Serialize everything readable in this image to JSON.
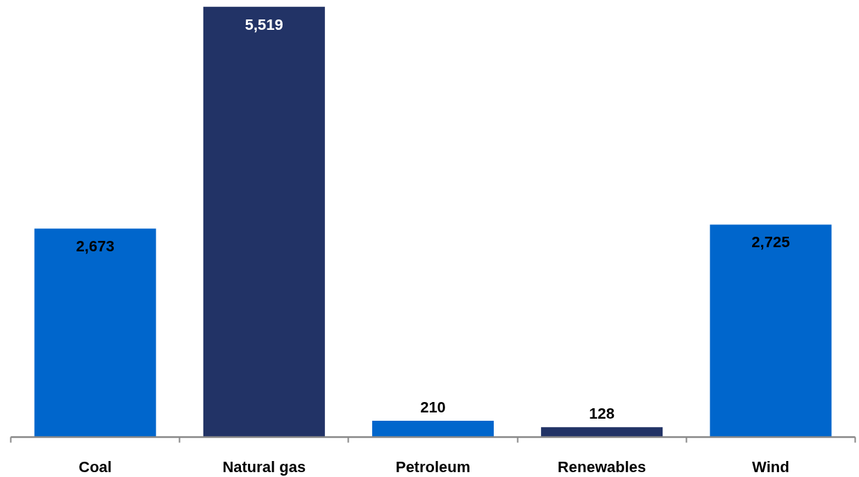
{
  "chart_data": {
    "type": "bar",
    "categories": [
      "Coal",
      "Natural gas",
      "Petroleum",
      "Renewables",
      "Wind"
    ],
    "values": [
      2673,
      5519,
      210,
      128,
      2725
    ],
    "colors": [
      "#0066cc",
      "#223366",
      "#0066cc",
      "#223366",
      "#0066cc"
    ],
    "value_labels": [
      "2,673",
      "5,519",
      "210",
      "128",
      "2,725"
    ]
  }
}
